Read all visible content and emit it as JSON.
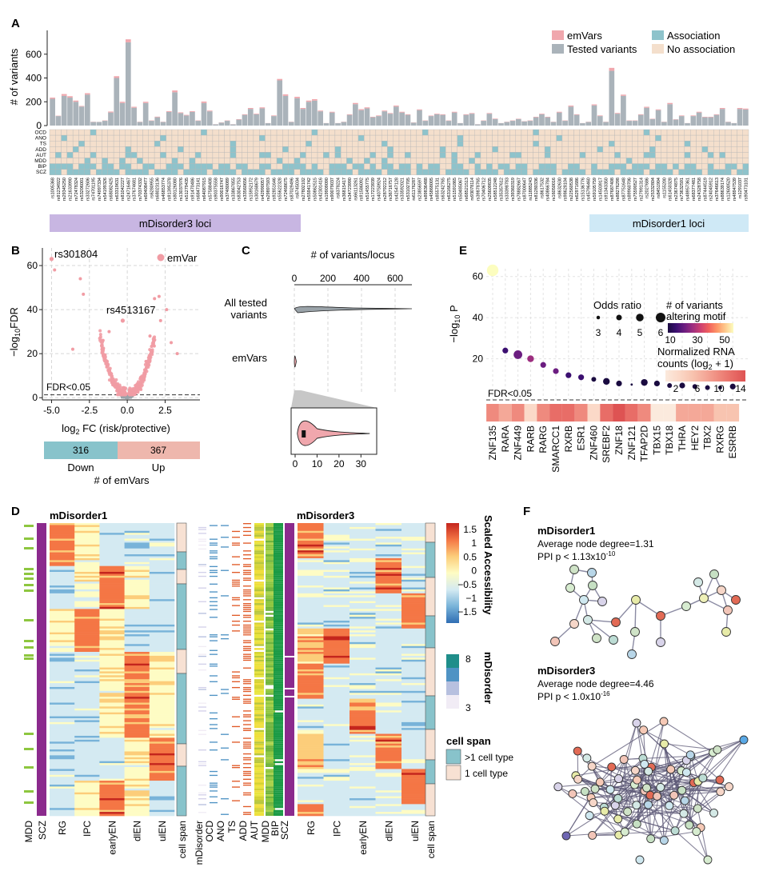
{
  "colors": {
    "emvar": "#f0a7ad",
    "tested": "#aab3ba",
    "association": "#8ec3cb",
    "no_association": "#f4dfcc",
    "sig_point": "#f19ca4",
    "nonsig_point": "#9aa3a9",
    "purple": "#8b2a8d",
    "green": "#8dc63f",
    "lavender_bar": "#c8b6e2",
    "blue_bar": "#cfe9f6",
    "down": "#88c3cb",
    "up": "#eeb7ad",
    "mdisorder_scale": [
      "#f1ecf5",
      "#b7c0df",
      "#4f93c4",
      "#1f8e8a"
    ],
    "accessibility_scale": [
      "#2f6db3",
      "#78b3d9",
      "#d4eaf2",
      "#fefcc4",
      "#fccd7a",
      "#f47645",
      "#c4251d"
    ]
  },
  "panelA": {
    "label": "A",
    "ylabel": "# of variants",
    "legend": {
      "emvars": "emVars",
      "tested": "Tested variants",
      "association": "Association",
      "no_association": "No association"
    },
    "disorders": [
      "OCD",
      "ANO",
      "TS",
      "ADD",
      "AUT",
      "MDD",
      "BIP",
      "SCZ"
    ],
    "loci_label_left": "mDisorder3 loci",
    "loci_label_right": "mDisorder1 loci"
  },
  "panelB": {
    "label": "B",
    "ylabel": "-log10FDR",
    "xlabel": "log2FC (risk/protective)",
    "fdr_label": "FDR<0.05",
    "legend": "emVar",
    "annot1": "rs301804",
    "annot2": "rs4513167",
    "down": {
      "count": "316",
      "label": "Down"
    },
    "up": {
      "count": "367",
      "label": "Up"
    },
    "count_label": "# of emVars"
  },
  "panelC": {
    "label": "C",
    "title": "# of variants/locus",
    "row1": "All tested",
    "row1b": "variants",
    "row2": "emVars"
  },
  "panelD": {
    "label": "D",
    "title1": "mDisorder1",
    "title3": "mDisorder3",
    "cols_left": [
      "MDD",
      "SCZ",
      "RG",
      "IPC",
      "earlyEN",
      "dlEN",
      "ulEN",
      "cell span"
    ],
    "cols_mid": [
      "mDisorder",
      "OCD",
      "ANO",
      "TS",
      "ADD",
      "AUT",
      "MDD",
      "BIP",
      "SCZ"
    ],
    "cols_right": [
      "RG",
      "IPC",
      "earlyEN",
      "dlEN",
      "ulEN",
      "cell span"
    ],
    "scale_title": "Scaled Accessibility",
    "mdisorder_title": "mDisorder",
    "cellspan_title": "cell span",
    "cellspan_multi": ">1 cell type",
    "cellspan_one": "1 cell type"
  },
  "panelE": {
    "label": "E",
    "ylabel": "-log10 P",
    "fdr_label": "FDR<0.05",
    "odds_title": "Odds ratio",
    "variants_title": "# of variants",
    "variants_title2": "altering motif",
    "rna_title": "Normalized RNA",
    "rna_title2": "counts (log2 + 1)"
  },
  "panelF": {
    "label": "F",
    "net1_title": "mDisorder1",
    "net1_degree": "Average node degree=1.31",
    "net1_ppi": "PPI p < 1.13x10",
    "net1_exp": "-10",
    "net3_title": "mDisorder3",
    "net3_degree": "Average node degree=4.46",
    "net3_ppi": "PPI p < 1.0x10",
    "net3_exp": "-16"
  },
  "chart_data": [
    {
      "id": "A",
      "type": "bar",
      "title": "",
      "ylabel": "# of variants",
      "ylim": [
        0,
        800
      ],
      "yticks": [
        0,
        200,
        400,
        600
      ],
      "series": [
        {
          "name": "Tested variants",
          "values": [
            225,
            80,
            250,
            235,
            200,
            160,
            260,
            30,
            30,
            40,
            110,
            400,
            190,
            700,
            150,
            30,
            190,
            40,
            70,
            30,
            115,
            280,
            105,
            85,
            115,
            40,
            190,
            120,
            10,
            25,
            40,
            10,
            50,
            90,
            140,
            95,
            145,
            20,
            80,
            380,
            250,
            30,
            230,
            140,
            200,
            210,
            120,
            20,
            110,
            20,
            30,
            90,
            180,
            130,
            145,
            70,
            80,
            120,
            100,
            160,
            110,
            90,
            25,
            130,
            40,
            80,
            95,
            90,
            40,
            110,
            20,
            90,
            100,
            10,
            40,
            100,
            55,
            20,
            30,
            40,
            55,
            35,
            40,
            70,
            95,
            70,
            30,
            110,
            40,
            160,
            90,
            20,
            30,
            170,
            80,
            30,
            460,
            100,
            250,
            40,
            40,
            90,
            150,
            55,
            130,
            30,
            180,
            50,
            80,
            20,
            80,
            110,
            70,
            70,
            90,
            140,
            30,
            20,
            140,
            135
          ]
        },
        {
          "name": "emVars",
          "values": [
            10,
            3,
            15,
            12,
            10,
            5,
            12,
            2,
            1,
            3,
            8,
            15,
            10,
            25,
            8,
            2,
            10,
            3,
            5,
            2,
            6,
            15,
            6,
            5,
            6,
            3,
            12,
            6,
            1,
            2,
            3,
            1,
            4,
            5,
            8,
            5,
            8,
            1,
            5,
            12,
            12,
            2,
            12,
            8,
            10,
            12,
            6,
            1,
            6,
            1,
            2,
            5,
            10,
            8,
            8,
            4,
            5,
            6,
            5,
            8,
            6,
            5,
            2,
            6,
            3,
            4,
            5,
            5,
            3,
            6,
            1,
            5,
            5,
            1,
            3,
            5,
            4,
            1,
            2,
            3,
            3,
            2,
            3,
            4,
            5,
            4,
            2,
            6,
            3,
            8,
            5,
            1,
            2,
            8,
            5,
            2,
            25,
            6,
            10,
            3,
            3,
            5,
            8,
            3,
            6,
            2,
            10,
            3,
            5,
            1,
            5,
            6,
            4,
            4,
            5,
            8,
            2,
            1,
            8,
            8
          ]
        }
      ]
    },
    {
      "id": "B",
      "type": "scatter",
      "xlabel": "log2FC (risk/protective)",
      "ylabel": "-log10FDR",
      "xlim": [
        -5.5,
        4.8
      ],
      "ylim": [
        -1,
        68
      ],
      "xticks": [
        -5.0,
        -2.5,
        0.0,
        2.5
      ],
      "yticks": [
        0,
        20,
        40,
        60
      ],
      "fdr_threshold": 1.3,
      "highlighted": [
        {
          "label": "rs301804",
          "x": -5.0,
          "y": 63
        },
        {
          "label": "rs4513167",
          "x": -0.3,
          "y": 35
        }
      ]
    },
    {
      "id": "B-counts",
      "type": "bar",
      "categories": [
        "Down",
        "Up"
      ],
      "values": [
        316,
        367
      ],
      "xlabel": "# of emVars"
    },
    {
      "id": "C",
      "type": "violin",
      "title": "# of variants/locus",
      "xlim": [
        0,
        700
      ],
      "xticks": [
        0,
        200,
        400,
        600
      ],
      "categories": [
        "All tested variants",
        "emVars"
      ],
      "inset_xticks": [
        0,
        10,
        20,
        30
      ]
    },
    {
      "id": "E",
      "type": "scatter",
      "ylabel": "-log10 P",
      "categories": [
        "ZNF135",
        "RARA",
        "ZNF449",
        "RARB",
        "RARG",
        "SMARCC1",
        "RXRB",
        "ESR1",
        "ZNF460",
        "SREBF2",
        "ZNF18",
        "ZNF121",
        "TFAP2D",
        "TBX15",
        "TBX18",
        "THRA",
        "HEY2",
        "TBX2",
        "RXRG",
        "ESRRB"
      ],
      "neg_log10_p": [
        63,
        24,
        22,
        20,
        17,
        14,
        12,
        11,
        10,
        9,
        8,
        7.5,
        8.5,
        8,
        7,
        7,
        6.5,
        6,
        6,
        6.5
      ],
      "odds_ratio": [
        6,
        3,
        4.5,
        3.5,
        3,
        3,
        3,
        3,
        2.5,
        3.5,
        3,
        1,
        3.5,
        3,
        2.5,
        3,
        2.5,
        2.5,
        2,
        3
      ],
      "n_variants": [
        60,
        15,
        20,
        25,
        22,
        18,
        15,
        15,
        8,
        5,
        5,
        5,
        5,
        5,
        5,
        5,
        5,
        5,
        5,
        5
      ],
      "rna_counts": [
        10,
        8,
        9,
        3,
        9,
        11,
        12,
        9,
        3,
        11,
        14,
        11,
        9,
        2,
        2,
        8,
        8,
        8,
        6,
        5
      ],
      "odds_legend": [
        3,
        4,
        5,
        6
      ],
      "variants_legend_ticks": [
        10,
        30,
        50
      ],
      "rna_legend_ticks": [
        2,
        6,
        10,
        14
      ],
      "ylim": [
        0,
        70
      ],
      "yticks": [
        20,
        40,
        60
      ]
    },
    {
      "id": "D",
      "type": "heatmap",
      "title": "Scaled Accessibility",
      "color_ticks": [
        1.5,
        1,
        0.5,
        0,
        -0.5,
        -1,
        -1.5
      ],
      "mdisorder_ticks": [
        8,
        3
      ],
      "columns": [
        "RG",
        "IPC",
        "earlyEN",
        "dlEN",
        "ulEN"
      ]
    }
  ]
}
